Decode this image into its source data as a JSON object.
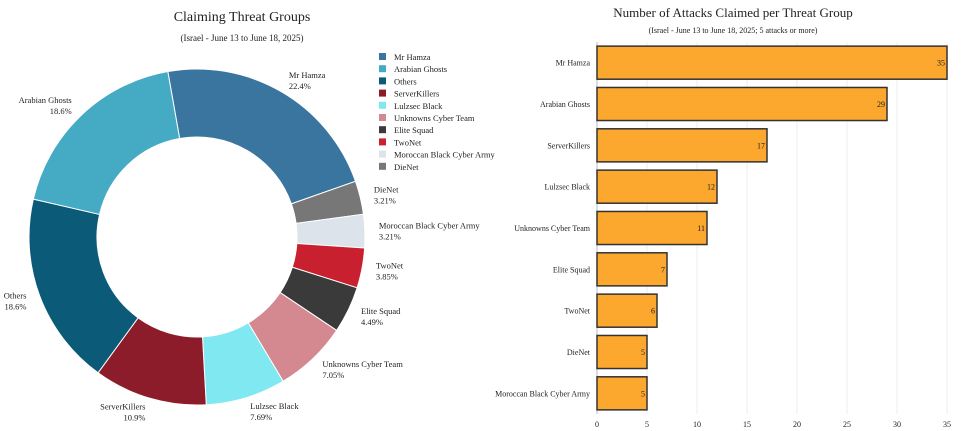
{
  "chart_data": [
    {
      "type": "pie",
      "title": "Claiming Threat Groups",
      "subtitle": "(Israel - June 13 to June 18, 2025)",
      "hole": true,
      "legend_position": "right",
      "slices": [
        {
          "label": "Mr Hamza",
          "percent": 22.4,
          "percent_label": "22.4%",
          "color": "#3a75a0"
        },
        {
          "label": "DieNet",
          "percent": 3.21,
          "percent_label": "3.21%",
          "color": "#777777"
        },
        {
          "label": "Moroccan Black Cyber Army",
          "percent": 3.21,
          "percent_label": "3.21%",
          "color": "#dde3ea"
        },
        {
          "label": "TwoNet",
          "percent": 3.85,
          "percent_label": "3.85%",
          "color": "#c8202e"
        },
        {
          "label": "Elite Squad",
          "percent": 4.49,
          "percent_label": "4.49%",
          "color": "#3a3a3a"
        },
        {
          "label": "Unknowns Cyber Team",
          "percent": 7.05,
          "percent_label": "7.05%",
          "color": "#d4888f"
        },
        {
          "label": "Lulzsec Black",
          "percent": 7.69,
          "percent_label": "7.69%",
          "color": "#80e8f0"
        },
        {
          "label": "ServerKillers",
          "percent": 10.9,
          "percent_label": "10.9%",
          "color": "#8c1c2a"
        },
        {
          "label": "Others",
          "percent": 18.6,
          "percent_label": "18.6%",
          "color": "#0b5a78"
        },
        {
          "label": "Arabian Ghosts",
          "percent": 18.6,
          "percent_label": "18.6%",
          "color": "#45abc4"
        }
      ],
      "legend": [
        "Mr Hamza",
        "Arabian Ghosts",
        "Others",
        "ServerKillers",
        "Lulzsec Black",
        "Unknowns Cyber Team",
        "Elite Squad",
        "TwoNet",
        "Moroccan Black Cyber Army",
        "DieNet"
      ]
    },
    {
      "type": "bar",
      "orientation": "horizontal",
      "title": "Number of Attacks Claimed per Threat Group",
      "subtitle": "(Israel - June 13 to June 18, 2025; 5 attacks or more)",
      "categories": [
        "Mr Hamza",
        "Arabian Ghosts",
        "ServerKillers",
        "Lulzsec Black",
        "Unknowns Cyber Team",
        "Elite Squad",
        "TwoNet",
        "DieNet",
        "Moroccan Black Cyber Army"
      ],
      "values": [
        35,
        29,
        17,
        12,
        11,
        7,
        6,
        5,
        5
      ],
      "xlim": [
        0,
        35
      ],
      "xticks": [
        0,
        5,
        10,
        15,
        20,
        25,
        30,
        35
      ],
      "grid": true,
      "bar_color": "#fca72e",
      "edge_color": "#333333"
    }
  ]
}
